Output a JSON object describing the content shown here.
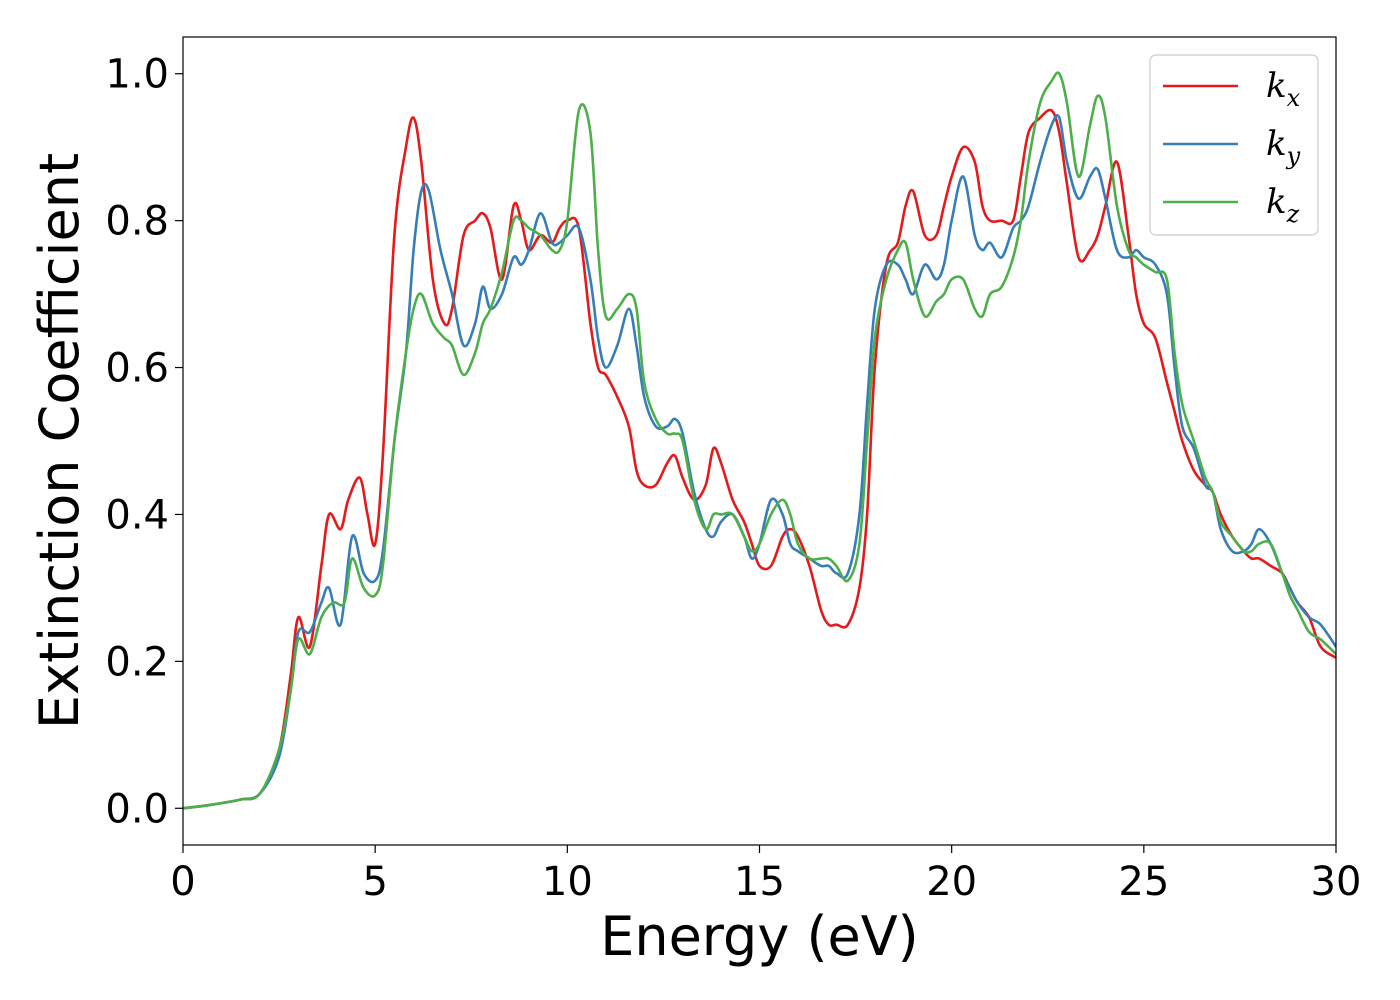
{
  "chart_data": {
    "type": "line",
    "title": "",
    "xlabel": "Energy (eV)",
    "ylabel": "Extinction Coefficient",
    "xlim": [
      0,
      30
    ],
    "ylim": [
      -0.05,
      1.05
    ],
    "xticks": [
      0,
      5,
      10,
      15,
      20,
      25,
      30
    ],
    "xtick_labels": [
      "0",
      "5",
      "10",
      "15",
      "20",
      "25",
      "30"
    ],
    "yticks": [
      0.0,
      0.2,
      0.4,
      0.6,
      0.8,
      1.0
    ],
    "ytick_labels": [
      "0.0",
      "0.2",
      "0.4",
      "0.6",
      "0.8",
      "1.0"
    ],
    "grid": false,
    "legend_position": "top-right",
    "series": [
      {
        "name": "kx",
        "legend_base": "k",
        "legend_sub": "x",
        "color": "#e41a1c",
        "x": [
          0,
          0.5,
          1,
          1.5,
          2,
          2.5,
          2.8,
          3.0,
          3.3,
          3.6,
          3.8,
          4.1,
          4.3,
          4.6,
          4.8,
          5.0,
          5.2,
          5.5,
          5.8,
          6.0,
          6.2,
          6.5,
          6.8,
          7.0,
          7.3,
          7.6,
          7.8,
          8.0,
          8.3,
          8.6,
          8.8,
          9.0,
          9.3,
          9.6,
          9.8,
          10.0,
          10.3,
          10.6,
          10.8,
          11.0,
          11.3,
          11.6,
          11.8,
          12.0,
          12.3,
          12.6,
          12.8,
          13.0,
          13.3,
          13.6,
          13.8,
          14.0,
          14.3,
          14.6,
          14.8,
          15.0,
          15.3,
          15.6,
          15.8,
          16.0,
          16.3,
          16.6,
          16.8,
          17.0,
          17.3,
          17.6,
          17.8,
          18.0,
          18.3,
          18.6,
          18.8,
          19.0,
          19.3,
          19.6,
          19.8,
          20.0,
          20.3,
          20.6,
          20.8,
          21.0,
          21.3,
          21.6,
          21.8,
          22.0,
          22.3,
          22.6,
          22.8,
          23.0,
          23.3,
          23.6,
          23.8,
          24.0,
          24.3,
          24.6,
          24.8,
          25.0,
          25.3,
          25.6,
          25.8,
          26.0,
          26.3,
          26.6,
          26.8,
          27.0,
          27.3,
          27.6,
          27.8,
          28.0,
          28.3,
          28.6,
          28.8,
          29.0,
          29.3,
          29.6,
          30.0
        ],
        "y": [
          0.0,
          0.003,
          0.007,
          0.012,
          0.02,
          0.08,
          0.18,
          0.26,
          0.22,
          0.33,
          0.4,
          0.38,
          0.42,
          0.45,
          0.4,
          0.36,
          0.48,
          0.78,
          0.9,
          0.94,
          0.88,
          0.72,
          0.66,
          0.68,
          0.78,
          0.8,
          0.81,
          0.79,
          0.72,
          0.82,
          0.8,
          0.76,
          0.78,
          0.77,
          0.79,
          0.8,
          0.79,
          0.66,
          0.6,
          0.59,
          0.56,
          0.52,
          0.46,
          0.44,
          0.44,
          0.47,
          0.48,
          0.45,
          0.42,
          0.44,
          0.49,
          0.47,
          0.42,
          0.39,
          0.36,
          0.33,
          0.33,
          0.37,
          0.38,
          0.37,
          0.33,
          0.27,
          0.25,
          0.25,
          0.25,
          0.3,
          0.4,
          0.6,
          0.74,
          0.77,
          0.82,
          0.84,
          0.78,
          0.78,
          0.82,
          0.86,
          0.9,
          0.88,
          0.82,
          0.8,
          0.8,
          0.8,
          0.86,
          0.92,
          0.94,
          0.95,
          0.92,
          0.85,
          0.75,
          0.76,
          0.78,
          0.82,
          0.88,
          0.78,
          0.7,
          0.66,
          0.64,
          0.58,
          0.54,
          0.5,
          0.46,
          0.44,
          0.43,
          0.4,
          0.37,
          0.35,
          0.34,
          0.34,
          0.33,
          0.32,
          0.3,
          0.28,
          0.26,
          0.22,
          0.205
        ]
      },
      {
        "name": "ky",
        "legend_base": "k",
        "legend_sub": "y",
        "color": "#377eb8",
        "x": [
          0,
          0.5,
          1,
          1.5,
          2,
          2.5,
          2.8,
          3.0,
          3.3,
          3.6,
          3.8,
          4.1,
          4.4,
          4.7,
          5.0,
          5.2,
          5.5,
          5.8,
          6.0,
          6.2,
          6.4,
          6.7,
          7.0,
          7.3,
          7.6,
          7.8,
          8.0,
          8.3,
          8.6,
          8.8,
          9.0,
          9.3,
          9.6,
          9.8,
          10.0,
          10.3,
          10.6,
          10.8,
          11.0,
          11.3,
          11.6,
          11.8,
          12.0,
          12.3,
          12.6,
          12.8,
          13.0,
          13.3,
          13.6,
          13.8,
          14.0,
          14.3,
          14.6,
          14.8,
          15.0,
          15.3,
          15.6,
          15.8,
          16.0,
          16.3,
          16.6,
          16.8,
          17.0,
          17.3,
          17.6,
          17.8,
          18.0,
          18.3,
          18.6,
          18.8,
          19.0,
          19.3,
          19.6,
          19.8,
          20.0,
          20.3,
          20.6,
          20.8,
          21.0,
          21.3,
          21.6,
          21.8,
          22.0,
          22.3,
          22.6,
          22.8,
          23.0,
          23.3,
          23.6,
          23.8,
          24.0,
          24.3,
          24.6,
          24.8,
          25.0,
          25.3,
          25.6,
          25.8,
          26.0,
          26.3,
          26.6,
          26.8,
          27.0,
          27.3,
          27.6,
          27.8,
          28.0,
          28.3,
          28.6,
          28.8,
          29.0,
          29.3,
          29.6,
          30.0
        ],
        "y": [
          0.0,
          0.003,
          0.007,
          0.012,
          0.02,
          0.07,
          0.16,
          0.24,
          0.24,
          0.28,
          0.3,
          0.25,
          0.37,
          0.32,
          0.31,
          0.35,
          0.5,
          0.62,
          0.76,
          0.84,
          0.84,
          0.76,
          0.7,
          0.63,
          0.66,
          0.71,
          0.68,
          0.7,
          0.75,
          0.74,
          0.76,
          0.81,
          0.77,
          0.77,
          0.78,
          0.79,
          0.72,
          0.64,
          0.6,
          0.63,
          0.68,
          0.63,
          0.56,
          0.52,
          0.52,
          0.53,
          0.51,
          0.43,
          0.38,
          0.37,
          0.39,
          0.4,
          0.37,
          0.34,
          0.36,
          0.42,
          0.4,
          0.36,
          0.35,
          0.34,
          0.33,
          0.33,
          0.32,
          0.32,
          0.4,
          0.55,
          0.68,
          0.74,
          0.74,
          0.72,
          0.7,
          0.74,
          0.72,
          0.74,
          0.8,
          0.86,
          0.78,
          0.76,
          0.77,
          0.75,
          0.79,
          0.8,
          0.82,
          0.88,
          0.93,
          0.94,
          0.88,
          0.83,
          0.86,
          0.87,
          0.83,
          0.76,
          0.75,
          0.76,
          0.75,
          0.74,
          0.7,
          0.6,
          0.52,
          0.49,
          0.44,
          0.43,
          0.38,
          0.35,
          0.35,
          0.36,
          0.38,
          0.36,
          0.32,
          0.3,
          0.28,
          0.26,
          0.25,
          0.22
        ]
      },
      {
        "name": "kz",
        "legend_base": "k",
        "legend_sub": "z",
        "color": "#4daf4a",
        "x": [
          0,
          0.5,
          1,
          1.5,
          2,
          2.5,
          2.8,
          3.0,
          3.3,
          3.6,
          3.9,
          4.2,
          4.4,
          4.7,
          5.0,
          5.2,
          5.5,
          5.8,
          6.0,
          6.2,
          6.5,
          6.8,
          7.0,
          7.3,
          7.6,
          7.8,
          8.0,
          8.3,
          8.6,
          8.8,
          9.0,
          9.3,
          9.6,
          9.8,
          10.0,
          10.3,
          10.6,
          10.8,
          11.0,
          11.3,
          11.6,
          11.8,
          12.0,
          12.3,
          12.6,
          12.8,
          13.0,
          13.3,
          13.6,
          13.8,
          14.0,
          14.3,
          14.6,
          14.8,
          15.0,
          15.3,
          15.6,
          15.8,
          16.0,
          16.3,
          16.6,
          16.8,
          17.0,
          17.3,
          17.6,
          17.8,
          18.0,
          18.3,
          18.6,
          18.8,
          19.0,
          19.3,
          19.6,
          19.8,
          20.0,
          20.3,
          20.6,
          20.8,
          21.0,
          21.3,
          21.6,
          21.8,
          22.0,
          22.3,
          22.6,
          22.8,
          23.0,
          23.3,
          23.6,
          23.8,
          24.0,
          24.3,
          24.6,
          24.8,
          25.0,
          25.3,
          25.6,
          25.8,
          26.0,
          26.3,
          26.6,
          26.8,
          27.0,
          27.3,
          27.6,
          27.8,
          28.0,
          28.3,
          28.6,
          28.8,
          29.0,
          29.3,
          29.6,
          30.0
        ],
        "y": [
          0.0,
          0.003,
          0.007,
          0.012,
          0.02,
          0.08,
          0.16,
          0.23,
          0.21,
          0.26,
          0.28,
          0.28,
          0.34,
          0.3,
          0.29,
          0.33,
          0.5,
          0.62,
          0.68,
          0.7,
          0.66,
          0.64,
          0.63,
          0.59,
          0.62,
          0.66,
          0.68,
          0.73,
          0.8,
          0.8,
          0.79,
          0.78,
          0.76,
          0.76,
          0.8,
          0.95,
          0.92,
          0.76,
          0.67,
          0.68,
          0.7,
          0.68,
          0.58,
          0.53,
          0.51,
          0.51,
          0.5,
          0.42,
          0.38,
          0.4,
          0.4,
          0.4,
          0.37,
          0.35,
          0.36,
          0.4,
          0.42,
          0.4,
          0.36,
          0.34,
          0.34,
          0.34,
          0.33,
          0.31,
          0.36,
          0.5,
          0.64,
          0.72,
          0.76,
          0.77,
          0.72,
          0.67,
          0.69,
          0.7,
          0.72,
          0.72,
          0.68,
          0.67,
          0.7,
          0.71,
          0.75,
          0.8,
          0.88,
          0.96,
          0.99,
          1.0,
          0.96,
          0.86,
          0.93,
          0.97,
          0.94,
          0.82,
          0.76,
          0.75,
          0.74,
          0.73,
          0.72,
          0.62,
          0.55,
          0.5,
          0.45,
          0.43,
          0.39,
          0.37,
          0.35,
          0.35,
          0.36,
          0.36,
          0.32,
          0.29,
          0.27,
          0.24,
          0.23,
          0.21
        ]
      }
    ]
  }
}
